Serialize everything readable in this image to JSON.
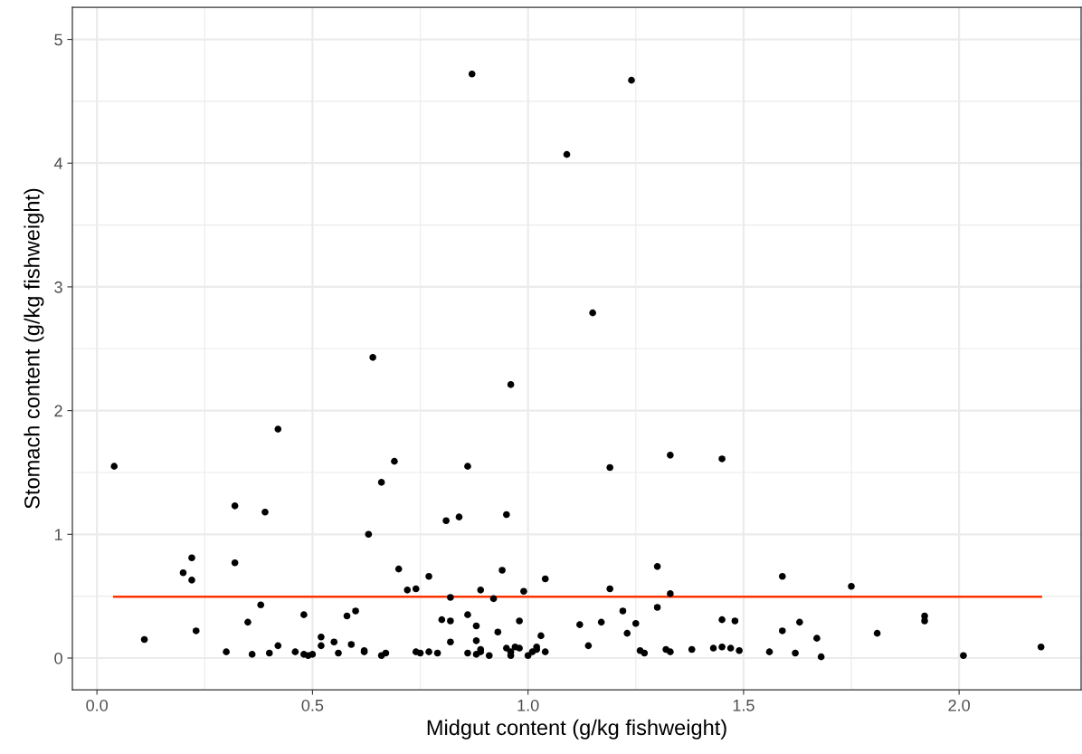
{
  "chart_data": {
    "type": "scatter",
    "xlabel": "Midgut content (g/kg fishweight)",
    "ylabel": "Stomach content (g/kg fishweight)",
    "xlim": [
      -0.057,
      2.283
    ],
    "ylim": [
      -0.256,
      5.26
    ],
    "xticks": [
      {
        "value": 0,
        "label": "0.0"
      },
      {
        "value": 0.5,
        "label": "0.5"
      },
      {
        "value": 1,
        "label": "1.0"
      },
      {
        "value": 1.5,
        "label": "1.5"
      },
      {
        "value": 2,
        "label": "2.0"
      }
    ],
    "yticks": [
      0,
      1,
      2,
      3,
      4,
      5
    ],
    "grid": true,
    "series": [
      {
        "color": "#000000",
        "marker": "circle",
        "x": [
          0.04,
          0.11,
          0.2,
          0.22,
          0.22,
          0.23,
          0.3,
          0.32,
          0.32,
          0.35,
          0.36,
          0.38,
          0.39,
          0.4,
          0.42,
          0.42,
          0.46,
          0.48,
          0.48,
          0.49,
          0.5,
          0.52,
          0.52,
          0.55,
          0.56,
          0.58,
          0.59,
          0.6,
          0.62,
          0.62,
          0.63,
          0.64,
          0.66,
          0.66,
          0.67,
          0.69,
          0.7,
          0.72,
          0.74,
          0.74,
          0.75,
          0.77,
          0.77,
          0.79,
          0.8,
          0.81,
          0.82,
          0.82,
          0.82,
          0.84,
          0.86,
          0.86,
          0.86,
          0.87,
          0.88,
          0.88,
          0.88,
          0.89,
          0.89,
          0.89,
          0.91,
          0.92,
          0.93,
          0.94,
          0.95,
          0.95,
          0.96,
          0.96,
          0.96,
          0.97,
          0.98,
          0.98,
          0.99,
          1.0,
          1.01,
          1.02,
          1.02,
          1.03,
          1.04,
          1.04,
          1.09,
          1.12,
          1.14,
          1.15,
          1.17,
          1.19,
          1.19,
          1.22,
          1.23,
          1.24,
          1.25,
          1.26,
          1.27,
          1.3,
          1.3,
          1.32,
          1.33,
          1.33,
          1.33,
          1.38,
          1.43,
          1.45,
          1.45,
          1.45,
          1.47,
          1.48,
          1.49,
          1.56,
          1.59,
          1.59,
          1.62,
          1.63,
          1.67,
          1.68,
          1.75,
          1.81,
          1.92,
          1.92,
          2.01,
          2.19
        ],
        "values": [
          1.55,
          0.15,
          0.69,
          0.81,
          0.63,
          0.22,
          0.05,
          1.23,
          0.77,
          0.29,
          0.03,
          0.43,
          1.18,
          0.04,
          1.85,
          0.1,
          0.05,
          0.35,
          0.03,
          0.02,
          0.03,
          0.17,
          0.1,
          0.13,
          0.04,
          0.34,
          0.11,
          0.38,
          0.06,
          0.05,
          1.0,
          2.43,
          1.42,
          0.02,
          0.04,
          1.59,
          0.72,
          0.55,
          0.56,
          0.05,
          0.04,
          0.05,
          0.66,
          0.04,
          0.31,
          1.11,
          0.49,
          0.3,
          0.13,
          1.14,
          1.55,
          0.35,
          0.04,
          4.72,
          0.03,
          0.26,
          0.14,
          0.55,
          0.07,
          0.05,
          0.02,
          0.48,
          0.21,
          0.71,
          1.16,
          0.08,
          2.21,
          0.02,
          0.05,
          0.09,
          0.3,
          0.08,
          0.54,
          0.02,
          0.05,
          0.09,
          0.07,
          0.18,
          0.64,
          0.05,
          4.07,
          0.27,
          0.1,
          2.79,
          0.29,
          1.54,
          0.56,
          0.38,
          0.2,
          4.67,
          0.28,
          0.06,
          0.04,
          0.74,
          0.41,
          0.07,
          0.05,
          0.52,
          1.64,
          0.07,
          0.08,
          1.61,
          0.31,
          0.09,
          0.08,
          0.3,
          0.06,
          0.05,
          0.66,
          0.22,
          0.04,
          0.29,
          0.16,
          0.01,
          0.58,
          0.2,
          0.34,
          0.3,
          0.02,
          0.09
        ]
      },
      {
        "type": "line",
        "marker": "none",
        "color": "#ff3300",
        "x": [
          0.04,
          2.19
        ],
        "values": [
          0.495,
          0.495
        ]
      }
    ]
  }
}
